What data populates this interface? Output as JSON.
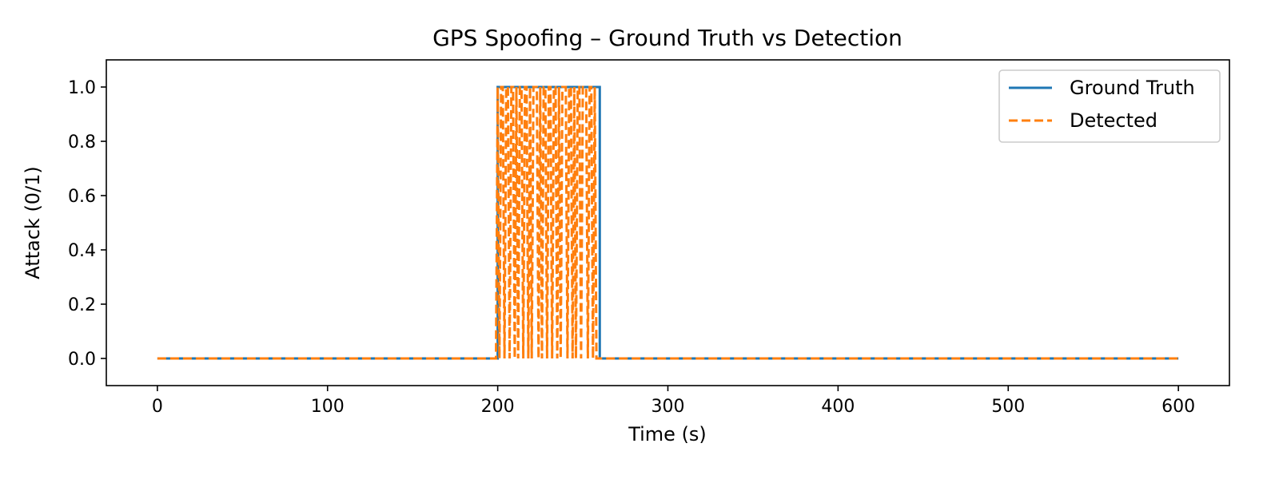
{
  "chart_data": {
    "type": "line",
    "title": "GPS Spoofing – Ground Truth vs Detection",
    "xlabel": "Time (s)",
    "ylabel": "Attack (0/1)",
    "xlim": [
      -30,
      630
    ],
    "ylim": [
      -0.1,
      1.1
    ],
    "xticks": [
      0,
      100,
      200,
      300,
      400,
      500,
      600
    ],
    "xtick_labels": [
      "0",
      "100",
      "200",
      "300",
      "400",
      "500",
      "600"
    ],
    "yticks": [
      0.0,
      0.2,
      0.4,
      0.6,
      0.8,
      1.0
    ],
    "ytick_labels": [
      "0.0",
      "0.2",
      "0.4",
      "0.6",
      "0.8",
      "1.0"
    ],
    "grid": false,
    "legend": "upper right",
    "series": [
      {
        "name": "Ground Truth",
        "color": "#1f77b4",
        "style": "solid",
        "x": [
          0,
          200,
          200,
          260,
          260,
          600
        ],
        "y": [
          0,
          0,
          1,
          1,
          0,
          0
        ]
      },
      {
        "name": "Detected",
        "color": "#ff7f0e",
        "style": "dashed",
        "x": [
          0,
          199,
          200,
          201,
          202,
          203,
          204,
          205,
          206,
          207,
          208,
          209,
          210,
          211,
          212,
          213,
          214,
          215,
          216,
          217,
          218,
          219,
          220,
          221,
          222,
          223,
          224,
          225,
          226,
          227,
          228,
          229,
          230,
          231,
          232,
          233,
          234,
          235,
          236,
          237,
          238,
          239,
          240,
          241,
          242,
          243,
          244,
          245,
          246,
          247,
          248,
          249,
          250,
          251,
          252,
          253,
          254,
          255,
          256,
          257,
          258,
          259,
          260,
          600
        ],
        "y": [
          0,
          0,
          1,
          0,
          1,
          1,
          0,
          1,
          1,
          0,
          1,
          1,
          0,
          1,
          0,
          1,
          1,
          0,
          1,
          1,
          0,
          1,
          0,
          1,
          1,
          1,
          0,
          1,
          0,
          1,
          1,
          0,
          1,
          1,
          0,
          1,
          1,
          0,
          1,
          0,
          1,
          1,
          1,
          0,
          1,
          1,
          0,
          1,
          0,
          1,
          1,
          0,
          1,
          1,
          1,
          0,
          1,
          1,
          0,
          1,
          0,
          0,
          0,
          0
        ]
      }
    ]
  }
}
